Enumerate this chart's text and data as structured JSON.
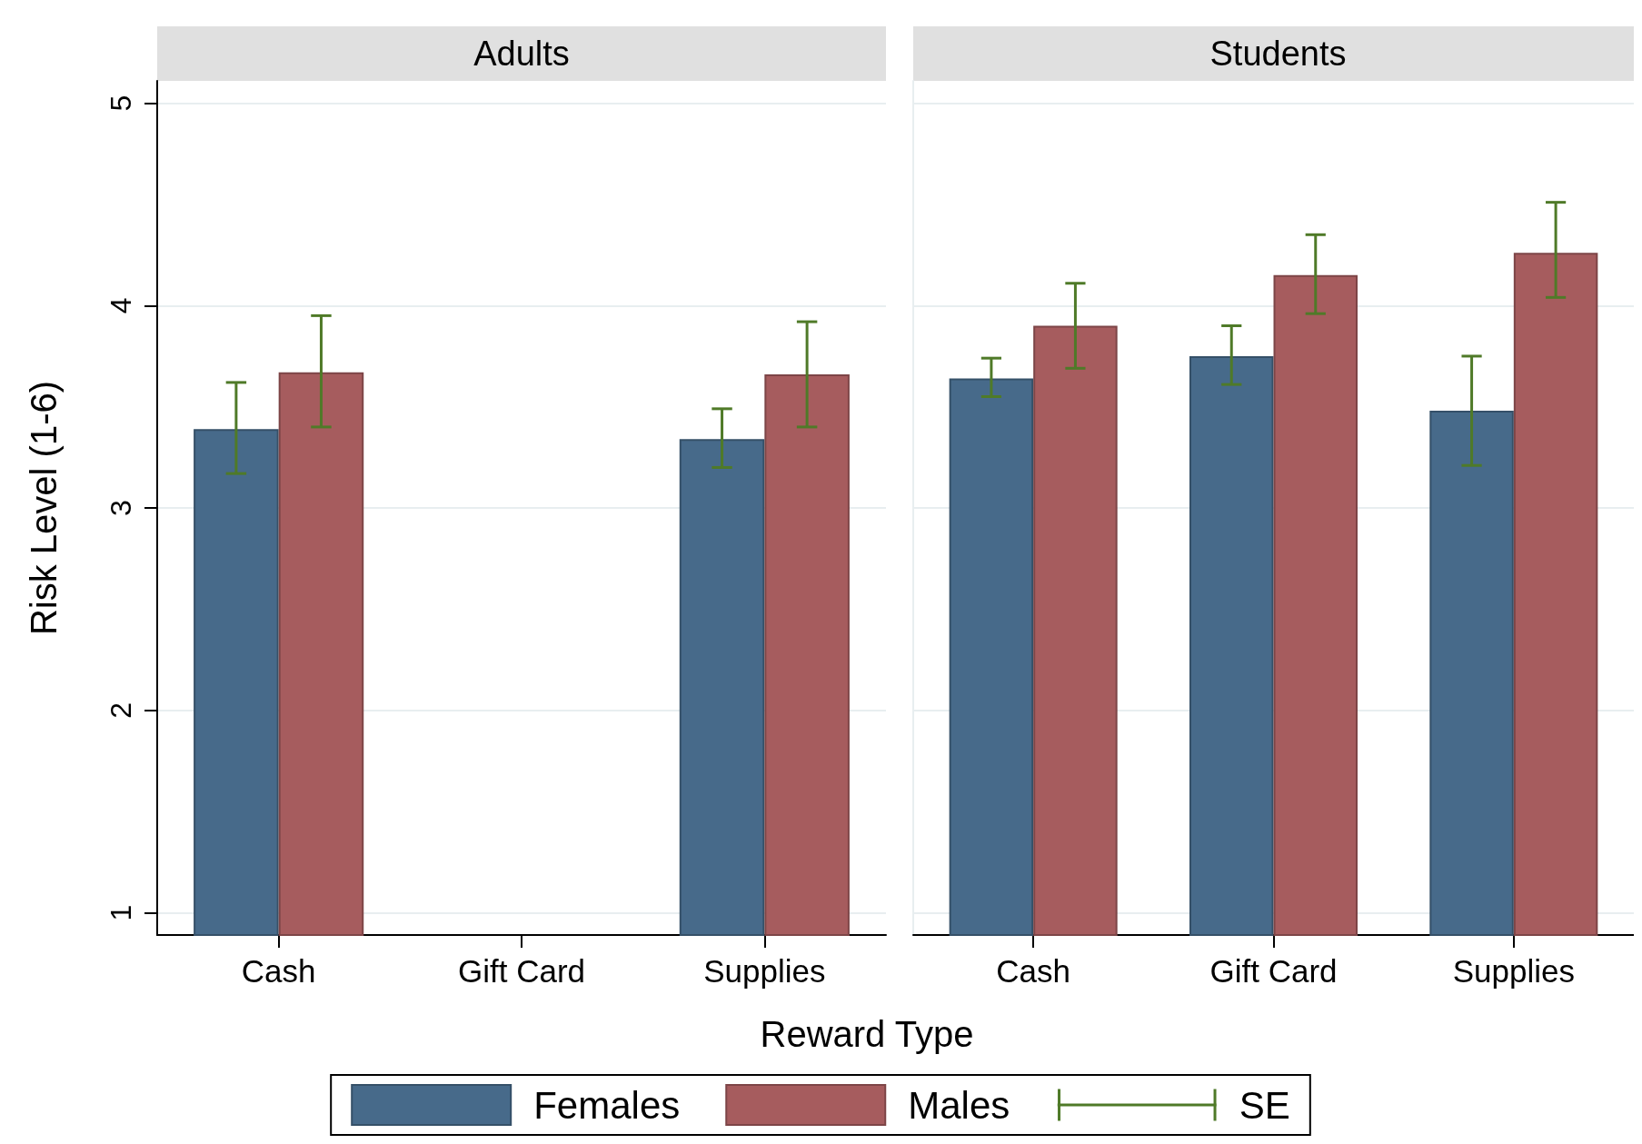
{
  "chart_data": [
    {
      "type": "bar",
      "title": "Adults",
      "xlabel": "Reward Type",
      "ylabel": "Risk Level (1-6)",
      "categories": [
        "Cash",
        "Gift Card",
        "Supplies"
      ],
      "series": [
        {
          "name": "Females",
          "color": "#476a8a",
          "values": [
            3.39,
            null,
            3.34
          ],
          "errors": [
            [
              3.17,
              3.62
            ],
            null,
            [
              3.2,
              3.49
            ]
          ]
        },
        {
          "name": "Males",
          "color": "#a65c5e",
          "values": [
            3.67,
            null,
            3.66
          ],
          "errors": [
            [
              3.4,
              3.95
            ],
            null,
            [
              3.4,
              3.92
            ]
          ]
        }
      ],
      "ylim": [
        0.89,
        5.11
      ],
      "yticks": [
        1,
        2,
        3,
        4,
        5
      ],
      "grid": "y",
      "legend": "bottom",
      "annotations": [
        "SE"
      ]
    },
    {
      "type": "bar",
      "title": "Students",
      "categories": [
        "Cash",
        "Gift Card",
        "Supplies"
      ],
      "series": [
        {
          "color": "#476a8a",
          "values": [
            3.64,
            3.75,
            3.48
          ],
          "errors": [
            [
              3.55,
              3.74
            ],
            [
              3.61,
              3.9
            ],
            [
              3.21,
              3.75
            ]
          ]
        },
        {
          "color": "#a65c5e",
          "values": [
            3.9,
            4.15,
            4.26
          ],
          "errors": [
            [
              3.69,
              4.11
            ],
            [
              3.96,
              4.35
            ],
            [
              4.04,
              4.51
            ]
          ]
        }
      ],
      "ylim": [
        0.89,
        5.11
      ],
      "yticks": [
        1,
        2,
        3,
        4,
        5
      ],
      "grid": "y",
      "tick_labels": "x"
    }
  ]
}
